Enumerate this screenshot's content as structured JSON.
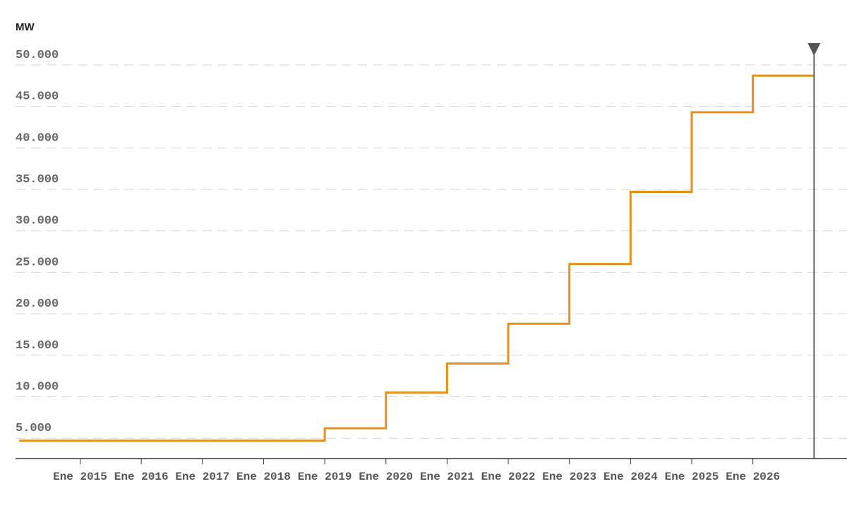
{
  "chart_data": {
    "type": "line",
    "step": true,
    "unit_label": "MW",
    "y_ticks": [
      "5.000",
      "10.000",
      "15.000",
      "20.000",
      "25.000",
      "30.000",
      "35.000",
      "40.000",
      "45.000",
      "50.000"
    ],
    "y_tick_values": [
      5000,
      10000,
      15000,
      20000,
      25000,
      30000,
      35000,
      40000,
      45000,
      50000
    ],
    "ylim": [
      3000,
      50000
    ],
    "grid": true,
    "x_tick_labels": [
      "Ene 2015",
      "Ene 2016",
      "Ene 2017",
      "Ene 2018",
      "Ene 2019",
      "Ene 2020",
      "Ene 2021",
      "Ene 2022",
      "Ene 2023",
      "Ene 2024",
      "Ene 2025",
      "Ene 2026"
    ],
    "series": [
      {
        "color": "#E8901C",
        "x": [
          "2014-01",
          "2015-01",
          "2016-01",
          "2017-01",
          "2018-01",
          "2019-01",
          "2020-01",
          "2021-01",
          "2022-01",
          "2023-01",
          "2024-01",
          "2025-01",
          "2026-01"
        ],
        "values": [
          4700,
          4700,
          4700,
          4700,
          4700,
          6200,
          10500,
          14000,
          18800,
          26000,
          34700,
          44300,
          48700
        ]
      }
    ],
    "marker": {
      "label": "",
      "at": "2027-01",
      "color": "#555555"
    }
  }
}
